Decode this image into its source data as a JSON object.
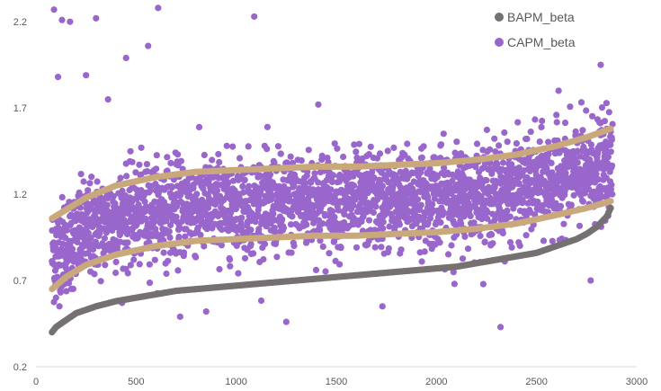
{
  "chart_data": {
    "type": "scatter",
    "title": "",
    "xlabel": "",
    "ylabel": "",
    "xlim": [
      0,
      3000
    ],
    "ylim": [
      0.2,
      2.3
    ],
    "x_ticks": [
      "0",
      "500",
      "1000",
      "1500",
      "2000",
      "2500",
      "3000"
    ],
    "y_ticks": [
      "0.2",
      "0.7",
      "1.2",
      "1.7",
      "2.2"
    ],
    "x_tick_values": [
      0,
      500,
      1000,
      1500,
      2000,
      2500,
      3000
    ],
    "y_tick_values": [
      0.2,
      0.7,
      1.2,
      1.7,
      2.2
    ],
    "grid": false,
    "legend_position": "top-right",
    "series": [
      {
        "name": "BAPM_beta",
        "color": "#767171",
        "marker": "circle",
        "x": [
          80,
          100,
          150,
          200,
          250,
          300,
          400,
          500,
          600,
          700,
          800,
          900,
          1000,
          1100,
          1200,
          1300,
          1400,
          1500,
          1600,
          1700,
          1800,
          1900,
          2000,
          2100,
          2200,
          2300,
          2400,
          2500,
          2600,
          2700,
          2750,
          2800,
          2850,
          2870
        ],
        "y": [
          0.4,
          0.43,
          0.47,
          0.51,
          0.53,
          0.55,
          0.58,
          0.6,
          0.62,
          0.64,
          0.65,
          0.66,
          0.67,
          0.68,
          0.69,
          0.7,
          0.71,
          0.72,
          0.73,
          0.74,
          0.75,
          0.76,
          0.77,
          0.78,
          0.8,
          0.82,
          0.84,
          0.86,
          0.9,
          0.94,
          0.97,
          1.01,
          1.07,
          1.12
        ]
      },
      {
        "name": "CAPM_beta",
        "color": "#9966cc",
        "marker": "circle",
        "outliers_x": [
          90,
          130,
          170,
          300,
          450,
          560,
          610,
          1090,
          2820,
          110,
          250,
          360,
          100,
          1250,
          720,
          1730,
          2320,
          2770,
          2090,
          1410,
          850,
          2610
        ],
        "outliers_y": [
          2.27,
          2.21,
          2.2,
          2.22,
          1.99,
          2.06,
          2.28,
          2.23,
          1.95,
          1.88,
          1.89,
          1.75,
          0.6,
          0.46,
          0.49,
          0.55,
          0.43,
          0.7,
          0.68,
          1.72,
          0.52,
          1.8
        ]
      }
    ],
    "trend_lines": {
      "color": "#c9a87c",
      "upper": {
        "x": [
          80,
          150,
          250,
          400,
          600,
          800,
          1000,
          1200,
          1400,
          1600,
          1800,
          2000,
          2200,
          2400,
          2600,
          2750,
          2870
        ],
        "y": [
          1.06,
          1.11,
          1.18,
          1.25,
          1.3,
          1.33,
          1.34,
          1.35,
          1.36,
          1.36,
          1.37,
          1.38,
          1.4,
          1.43,
          1.48,
          1.53,
          1.58
        ]
      },
      "lower": {
        "x": [
          80,
          150,
          250,
          400,
          600,
          800,
          1000,
          1200,
          1400,
          1600,
          1800,
          2000,
          2200,
          2400,
          2600,
          2750,
          2870
        ],
        "y": [
          0.65,
          0.72,
          0.79,
          0.85,
          0.9,
          0.93,
          0.94,
          0.95,
          0.96,
          0.96,
          0.97,
          0.98,
          1.0,
          1.03,
          1.08,
          1.12,
          1.16
        ]
      }
    }
  }
}
